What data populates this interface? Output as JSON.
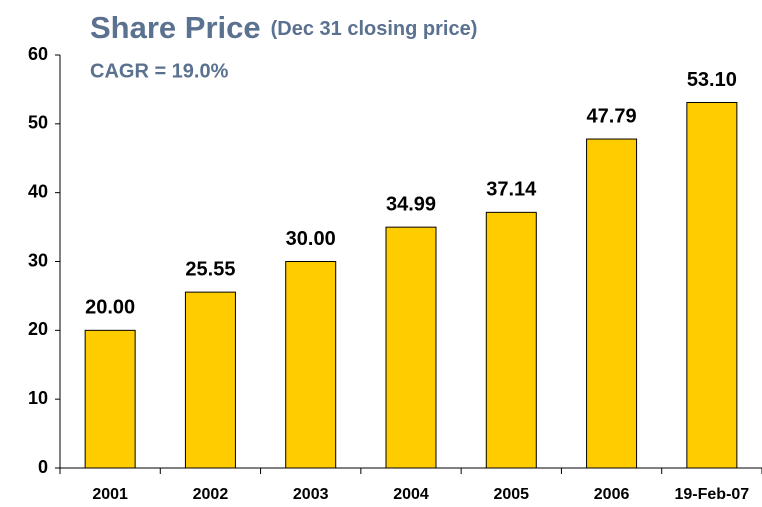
{
  "chart_data": {
    "type": "bar",
    "title": "Share Price",
    "title_note": "(Dec 31 closing price)",
    "subtitle": "CAGR = 19.0%",
    "categories": [
      "2001",
      "2002",
      "2003",
      "2004",
      "2005",
      "2006",
      "19-Feb-07"
    ],
    "values": [
      20,
      25.55,
      30,
      34.99,
      37.14,
      47.79,
      53.1
    ],
    "value_labels": [
      "20.00",
      "25.55",
      "30.00",
      "34.99",
      "37.14",
      "47.79",
      "53.10"
    ],
    "color": "#ffcc00",
    "ylim": [
      0,
      60
    ],
    "yticks": [
      0,
      10,
      20,
      30,
      40,
      50,
      60
    ],
    "grid": false
  }
}
